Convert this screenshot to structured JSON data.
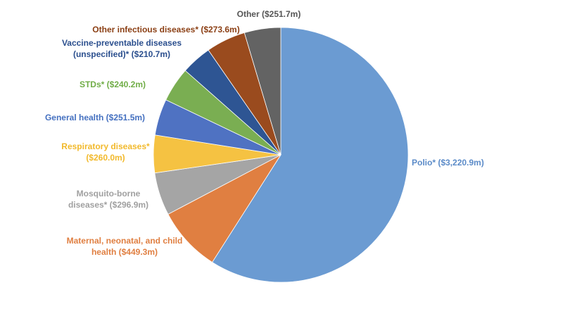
{
  "chart_data": {
    "type": "pie",
    "title": "",
    "legend": "none",
    "slices": [
      {
        "name": "Polio*",
        "value": 3220.9,
        "label": [
          "Polio* ($3,220.9m)"
        ],
        "color": "#6b9bd2",
        "text_color": "#5b8bc8"
      },
      {
        "name": "Maternal, neonatal, and child health",
        "value": 449.3,
        "label": [
          "Maternal, neonatal, and child",
          "health ($449.3m)"
        ],
        "color": "#e07f41",
        "text_color": "#e07f41"
      },
      {
        "name": "Mosquito-borne diseases*",
        "value": 296.9,
        "label": [
          "Mosquito-borne",
          "diseases* ($296.9m)"
        ],
        "color": "#a5a5a5",
        "text_color": "#a0a0a0"
      },
      {
        "name": "Respiratory diseases*",
        "value": 260.0,
        "label": [
          "Respiratory diseases*",
          "($260.0m)"
        ],
        "color": "#f5c242",
        "text_color": "#f2b92b"
      },
      {
        "name": "General health",
        "value": 251.5,
        "label": [
          "General health ($251.5m)"
        ],
        "color": "#4f72c2",
        "text_color": "#4470c0"
      },
      {
        "name": "STDs*",
        "value": 240.2,
        "label": [
          "STDs* ($240.2m)"
        ],
        "color": "#7aae52",
        "text_color": "#70ad47"
      },
      {
        "name": "Vaccine-preventable diseases (unspecified)*",
        "value": 210.7,
        "label": [
          "Vaccine-preventable diseases",
          "(unspecified)* ($210.7m)"
        ],
        "color": "#2e5593",
        "text_color": "#2b4f8e"
      },
      {
        "name": "Other infectious diseases*",
        "value": 273.6,
        "label": [
          "Other infectious diseases* ($273.6m)"
        ],
        "color": "#9a4b1e",
        "text_color": "#8b3f14"
      },
      {
        "name": "Other",
        "value": 251.7,
        "label": [
          "Other ($251.7m)"
        ],
        "color": "#636363",
        "text_color": "#555555"
      }
    ]
  }
}
